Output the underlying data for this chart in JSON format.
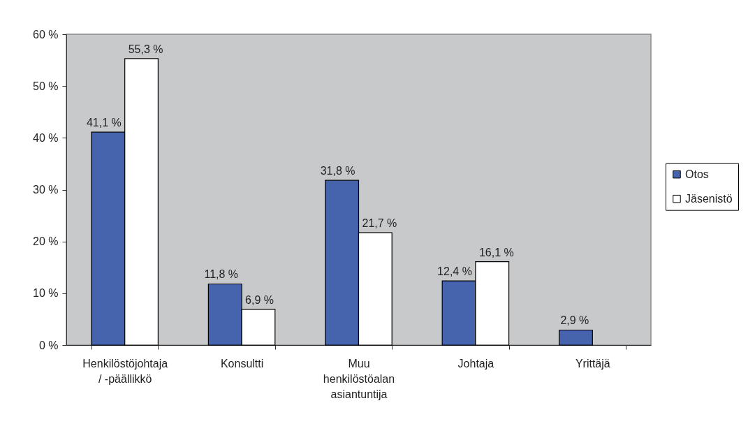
{
  "chart_data": {
    "type": "bar",
    "categories": [
      "Henkilöstöjohtaja / -päällikkö",
      "Konsultti",
      "Muu henkilöstöalan asiantuntija",
      "Johtaja",
      "Yrittäjä"
    ],
    "series": [
      {
        "name": "Otos",
        "color": "#4664ad",
        "values": [
          41.1,
          11.8,
          31.8,
          12.4,
          2.9
        ],
        "value_labels": [
          "41,1 %",
          "11,8 %",
          "31,8 %",
          "12,4 %",
          "2,9 %"
        ]
      },
      {
        "name": "Jäsenistö",
        "color": "#ffffff",
        "values": [
          55.3,
          6.9,
          21.7,
          16.1,
          null
        ],
        "value_labels": [
          "55,3 %",
          "6,9 %",
          "21,7 %",
          "16,1 %",
          null
        ]
      }
    ],
    "ylim": [
      0,
      60
    ],
    "yticks": [
      {
        "value": 0,
        "label": "0 %"
      },
      {
        "value": 10,
        "label": "10 %"
      },
      {
        "value": 20,
        "label": "20 %"
      },
      {
        "value": 30,
        "label": "30 %"
      },
      {
        "value": 40,
        "label": "40 %"
      },
      {
        "value": 50,
        "label": "50 %"
      },
      {
        "value": 60,
        "label": "60 %"
      }
    ],
    "legend": "right"
  }
}
